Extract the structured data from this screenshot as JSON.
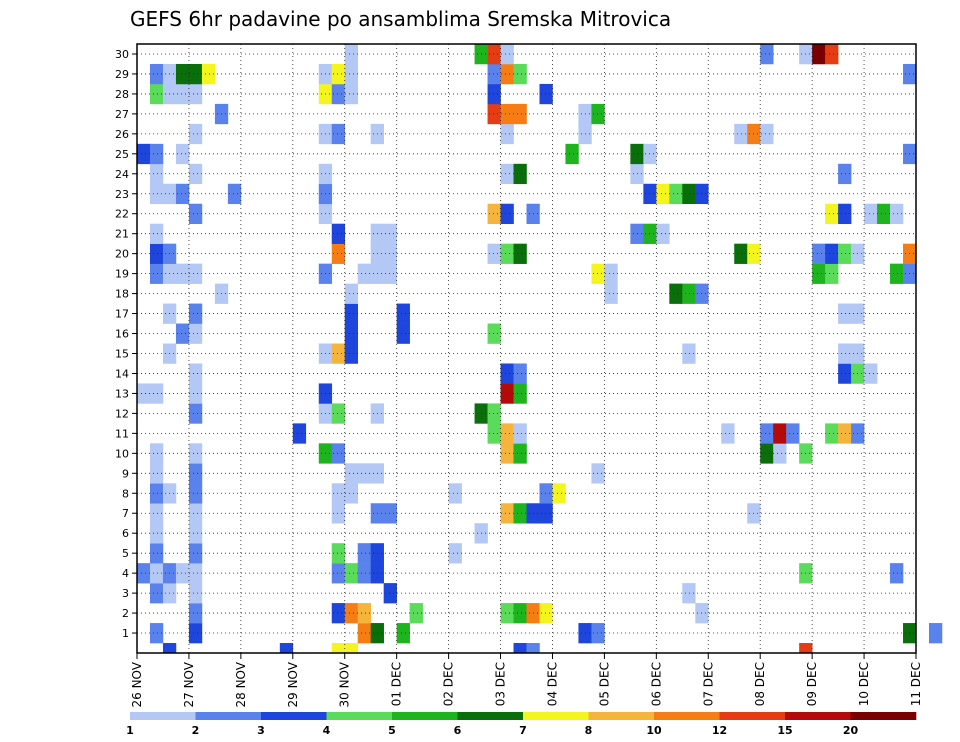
{
  "chart_data": {
    "type": "heatmap",
    "title": "GEFS 6hr padavine po ansamblima Sremska Mitrovica",
    "x_ticks": [
      "26 NOV",
      "27 NOV",
      "28 NOV",
      "29 NOV",
      "30 NOV",
      "01 DEC",
      "02 DEC",
      "03 DEC",
      "04 DEC",
      "05 DEC",
      "06 DEC",
      "07 DEC",
      "08 DEC",
      "09 DEC",
      "10 DEC",
      "11 DEC"
    ],
    "y_ticks": [
      "1",
      "2",
      "3",
      "4",
      "5",
      "6",
      "7",
      "8",
      "9",
      "10",
      "11",
      "12",
      "13",
      "14",
      "15",
      "16",
      "17",
      "18",
      "19",
      "20",
      "21",
      "22",
      "23",
      "24",
      "25",
      "26",
      "27",
      "28",
      "29",
      "30"
    ],
    "x_range_steps": 60,
    "y_range": [
      0,
      30
    ],
    "grid": true,
    "colorbar": {
      "labels": [
        "1",
        "2",
        "3",
        "4",
        "5",
        "6",
        "7",
        "8",
        "10",
        "12",
        "15",
        "20"
      ],
      "colors": [
        "#b4c8f5",
        "#5a82ec",
        "#1e46dc",
        "#5adc5a",
        "#1eb41e",
        "#0a6e0a",
        "#f5f51e",
        "#f5b43c",
        "#f57d14",
        "#e63c14",
        "#b40a0a",
        "#7a0000"
      ]
    },
    "cells": [
      [
        2,
        0,
        2
      ],
      [
        11,
        0,
        2
      ],
      [
        15,
        0,
        6
      ],
      [
        16,
        0,
        6
      ],
      [
        29,
        0,
        2
      ],
      [
        30,
        0,
        1
      ],
      [
        51,
        0,
        9
      ],
      [
        1,
        1,
        1
      ],
      [
        4,
        1,
        2
      ],
      [
        17,
        1,
        8
      ],
      [
        18,
        1,
        5
      ],
      [
        20,
        1,
        4
      ],
      [
        34,
        1,
        2
      ],
      [
        35,
        1,
        1
      ],
      [
        59,
        1,
        5
      ],
      [
        61,
        1,
        1
      ],
      [
        4,
        2,
        1
      ],
      [
        15,
        2,
        2
      ],
      [
        16,
        2,
        8
      ],
      [
        17,
        2,
        7
      ],
      [
        21,
        2,
        3
      ],
      [
        28,
        2,
        3
      ],
      [
        29,
        2,
        4
      ],
      [
        30,
        2,
        8
      ],
      [
        31,
        2,
        6
      ],
      [
        43,
        2,
        0
      ],
      [
        1,
        3,
        1
      ],
      [
        2,
        3,
        0
      ],
      [
        4,
        3,
        0
      ],
      [
        19,
        3,
        2
      ],
      [
        42,
        3,
        0
      ],
      [
        0,
        4,
        1
      ],
      [
        1,
        4,
        0
      ],
      [
        2,
        4,
        1
      ],
      [
        3,
        4,
        0
      ],
      [
        4,
        4,
        0
      ],
      [
        15,
        4,
        1
      ],
      [
        16,
        4,
        3
      ],
      [
        17,
        4,
        1
      ],
      [
        18,
        4,
        2
      ],
      [
        51,
        4,
        3
      ],
      [
        58,
        4,
        1
      ],
      [
        1,
        5,
        1
      ],
      [
        4,
        5,
        1
      ],
      [
        15,
        5,
        3
      ],
      [
        17,
        5,
        1
      ],
      [
        18,
        5,
        2
      ],
      [
        24,
        5,
        0
      ],
      [
        1,
        6,
        0
      ],
      [
        4,
        6,
        0
      ],
      [
        26,
        6,
        0
      ],
      [
        1,
        7,
        0
      ],
      [
        4,
        7,
        0
      ],
      [
        15,
        7,
        0
      ],
      [
        18,
        7,
        1
      ],
      [
        19,
        7,
        1
      ],
      [
        28,
        7,
        7
      ],
      [
        29,
        7,
        4
      ],
      [
        30,
        7,
        2
      ],
      [
        31,
        7,
        2
      ],
      [
        47,
        7,
        0
      ],
      [
        1,
        8,
        1
      ],
      [
        2,
        8,
        0
      ],
      [
        4,
        8,
        1
      ],
      [
        15,
        8,
        0
      ],
      [
        16,
        8,
        0
      ],
      [
        24,
        8,
        0
      ],
      [
        31,
        8,
        1
      ],
      [
        32,
        8,
        6
      ],
      [
        1,
        9,
        0
      ],
      [
        4,
        9,
        1
      ],
      [
        16,
        9,
        0
      ],
      [
        17,
        9,
        0
      ],
      [
        18,
        9,
        0
      ],
      [
        35,
        9,
        0
      ],
      [
        1,
        10,
        0
      ],
      [
        4,
        10,
        0
      ],
      [
        14,
        10,
        4
      ],
      [
        15,
        10,
        1
      ],
      [
        28,
        10,
        7
      ],
      [
        29,
        10,
        4
      ],
      [
        48,
        10,
        5
      ],
      [
        49,
        10,
        0
      ],
      [
        51,
        10,
        3
      ],
      [
        12,
        11,
        2
      ],
      [
        27,
        11,
        3
      ],
      [
        28,
        11,
        7
      ],
      [
        29,
        11,
        0
      ],
      [
        45,
        11,
        0
      ],
      [
        48,
        11,
        1
      ],
      [
        49,
        11,
        10
      ],
      [
        50,
        11,
        1
      ],
      [
        53,
        11,
        3
      ],
      [
        54,
        11,
        7
      ],
      [
        55,
        11,
        1
      ],
      [
        4,
        12,
        1
      ],
      [
        14,
        12,
        0
      ],
      [
        15,
        12,
        3
      ],
      [
        18,
        12,
        0
      ],
      [
        26,
        12,
        5
      ],
      [
        27,
        12,
        3
      ],
      [
        0,
        13,
        0
      ],
      [
        1,
        13,
        0
      ],
      [
        4,
        13,
        0
      ],
      [
        14,
        13,
        2
      ],
      [
        28,
        13,
        10
      ],
      [
        29,
        13,
        4
      ],
      [
        4,
        14,
        0
      ],
      [
        28,
        14,
        2
      ],
      [
        29,
        14,
        1
      ],
      [
        54,
        14,
        2
      ],
      [
        55,
        14,
        3
      ],
      [
        56,
        14,
        0
      ],
      [
        2,
        15,
        0
      ],
      [
        14,
        15,
        0
      ],
      [
        15,
        15,
        7
      ],
      [
        16,
        15,
        2
      ],
      [
        42,
        15,
        0
      ],
      [
        54,
        15,
        0
      ],
      [
        55,
        15,
        0
      ],
      [
        3,
        16,
        1
      ],
      [
        4,
        16,
        0
      ],
      [
        16,
        16,
        2
      ],
      [
        20,
        16,
        2
      ],
      [
        27,
        16,
        3
      ],
      [
        2,
        17,
        0
      ],
      [
        4,
        17,
        1
      ],
      [
        16,
        17,
        2
      ],
      [
        20,
        17,
        2
      ],
      [
        54,
        17,
        0
      ],
      [
        55,
        17,
        0
      ],
      [
        6,
        18,
        0
      ],
      [
        16,
        18,
        0
      ],
      [
        36,
        18,
        0
      ],
      [
        41,
        18,
        5
      ],
      [
        42,
        18,
        4
      ],
      [
        43,
        18,
        1
      ],
      [
        1,
        19,
        1
      ],
      [
        2,
        19,
        0
      ],
      [
        3,
        19,
        0
      ],
      [
        4,
        19,
        0
      ],
      [
        14,
        19,
        1
      ],
      [
        17,
        19,
        0
      ],
      [
        18,
        19,
        0
      ],
      [
        19,
        19,
        0
      ],
      [
        35,
        19,
        6
      ],
      [
        36,
        19,
        0
      ],
      [
        52,
        19,
        4
      ],
      [
        53,
        19,
        3
      ],
      [
        58,
        19,
        4
      ],
      [
        59,
        19,
        1
      ],
      [
        1,
        20,
        2
      ],
      [
        2,
        20,
        1
      ],
      [
        15,
        20,
        8
      ],
      [
        18,
        20,
        0
      ],
      [
        19,
        20,
        0
      ],
      [
        27,
        20,
        0
      ],
      [
        28,
        20,
        3
      ],
      [
        29,
        20,
        5
      ],
      [
        46,
        20,
        5
      ],
      [
        47,
        20,
        6
      ],
      [
        52,
        20,
        1
      ],
      [
        53,
        20,
        2
      ],
      [
        54,
        20,
        3
      ],
      [
        55,
        20,
        0
      ],
      [
        59,
        20,
        8
      ],
      [
        1,
        21,
        0
      ],
      [
        15,
        21,
        2
      ],
      [
        18,
        21,
        0
      ],
      [
        19,
        21,
        0
      ],
      [
        38,
        21,
        1
      ],
      [
        39,
        21,
        4
      ],
      [
        40,
        21,
        0
      ],
      [
        4,
        22,
        1
      ],
      [
        14,
        22,
        0
      ],
      [
        27,
        22,
        7
      ],
      [
        28,
        22,
        2
      ],
      [
        30,
        22,
        1
      ],
      [
        53,
        22,
        6
      ],
      [
        54,
        22,
        2
      ],
      [
        56,
        22,
        0
      ],
      [
        57,
        22,
        4
      ],
      [
        58,
        22,
        0
      ],
      [
        1,
        23,
        0
      ],
      [
        2,
        23,
        0
      ],
      [
        3,
        23,
        1
      ],
      [
        7,
        23,
        1
      ],
      [
        14,
        23,
        1
      ],
      [
        39,
        23,
        2
      ],
      [
        40,
        23,
        6
      ],
      [
        41,
        23,
        3
      ],
      [
        42,
        23,
        5
      ],
      [
        43,
        23,
        2
      ],
      [
        1,
        24,
        0
      ],
      [
        4,
        24,
        0
      ],
      [
        14,
        24,
        0
      ],
      [
        28,
        24,
        0
      ],
      [
        29,
        24,
        5
      ],
      [
        38,
        24,
        0
      ],
      [
        54,
        24,
        1
      ],
      [
        0,
        25,
        2
      ],
      [
        1,
        25,
        1
      ],
      [
        3,
        25,
        0
      ],
      [
        33,
        25,
        4
      ],
      [
        38,
        25,
        5
      ],
      [
        39,
        25,
        0
      ],
      [
        59,
        25,
        1
      ],
      [
        4,
        26,
        0
      ],
      [
        14,
        26,
        0
      ],
      [
        15,
        26,
        1
      ],
      [
        18,
        26,
        0
      ],
      [
        28,
        26,
        0
      ],
      [
        34,
        26,
        0
      ],
      [
        46,
        26,
        0
      ],
      [
        47,
        26,
        8
      ],
      [
        48,
        26,
        0
      ],
      [
        6,
        27,
        1
      ],
      [
        27,
        27,
        9
      ],
      [
        28,
        27,
        8
      ],
      [
        29,
        27,
        8
      ],
      [
        34,
        27,
        0
      ],
      [
        35,
        27,
        4
      ],
      [
        1,
        28,
        3
      ],
      [
        2,
        28,
        0
      ],
      [
        3,
        28,
        0
      ],
      [
        4,
        28,
        0
      ],
      [
        14,
        28,
        6
      ],
      [
        15,
        28,
        1
      ],
      [
        16,
        28,
        0
      ],
      [
        27,
        28,
        2
      ],
      [
        31,
        28,
        2
      ],
      [
        1,
        29,
        1
      ],
      [
        2,
        29,
        0
      ],
      [
        3,
        29,
        5
      ],
      [
        4,
        29,
        5
      ],
      [
        5,
        29,
        6
      ],
      [
        14,
        29,
        0
      ],
      [
        15,
        29,
        6
      ],
      [
        16,
        29,
        0
      ],
      [
        27,
        29,
        1
      ],
      [
        28,
        29,
        8
      ],
      [
        29,
        29,
        3
      ],
      [
        59,
        29,
        1
      ],
      [
        16,
        30,
        0
      ],
      [
        26,
        30,
        4
      ],
      [
        27,
        30,
        9
      ],
      [
        28,
        30,
        0
      ],
      [
        48,
        30,
        1
      ],
      [
        51,
        30,
        0
      ],
      [
        52,
        30,
        11
      ],
      [
        53,
        30,
        9
      ]
    ]
  }
}
